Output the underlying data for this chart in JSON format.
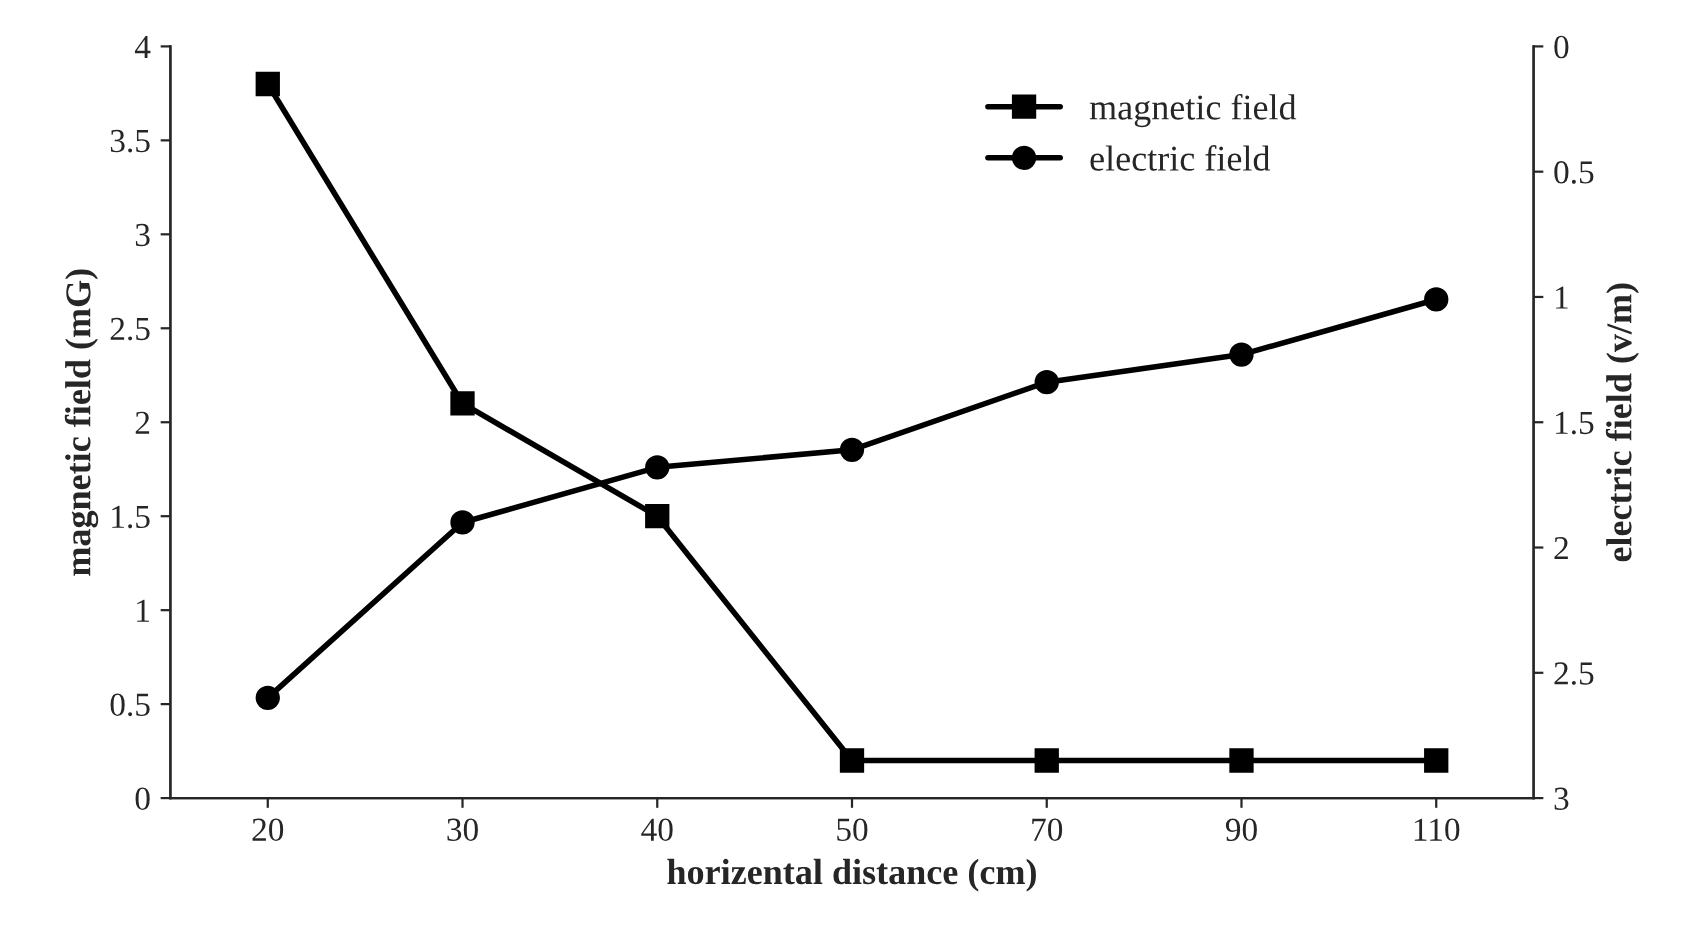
{
  "chart_data": {
    "type": "line",
    "xlabel": "horizental distance (cm)",
    "ylabel": "magnetic field (mG)",
    "y2label": "electric field (v/m)",
    "categories": [
      "20",
      "30",
      "40",
      "50",
      "70",
      "90",
      "110"
    ],
    "series": [
      {
        "name": "magnetic field",
        "color": "#000000",
        "marker": "square",
        "values": [
          3.8,
          2.1,
          1.5,
          0.2,
          0.2,
          0.2,
          0.2
        ]
      },
      {
        "name": "electric field",
        "color": "#000000",
        "marker": "circle",
        "axis": "y2",
        "values": [
          2.6,
          1.9,
          1.68,
          1.61,
          1.34,
          1.23,
          1.01
        ]
      }
    ],
    "ylim": [
      0,
      4
    ],
    "yticks": [
      0,
      0.5,
      1,
      1.5,
      2,
      2.5,
      3,
      3.5,
      4
    ],
    "y2lim": [
      3,
      0
    ],
    "y2ticks": [
      0,
      0.5,
      1,
      1.5,
      2,
      2.5,
      3
    ],
    "grid": false,
    "legend": "top right",
    "line_style": "solid"
  }
}
